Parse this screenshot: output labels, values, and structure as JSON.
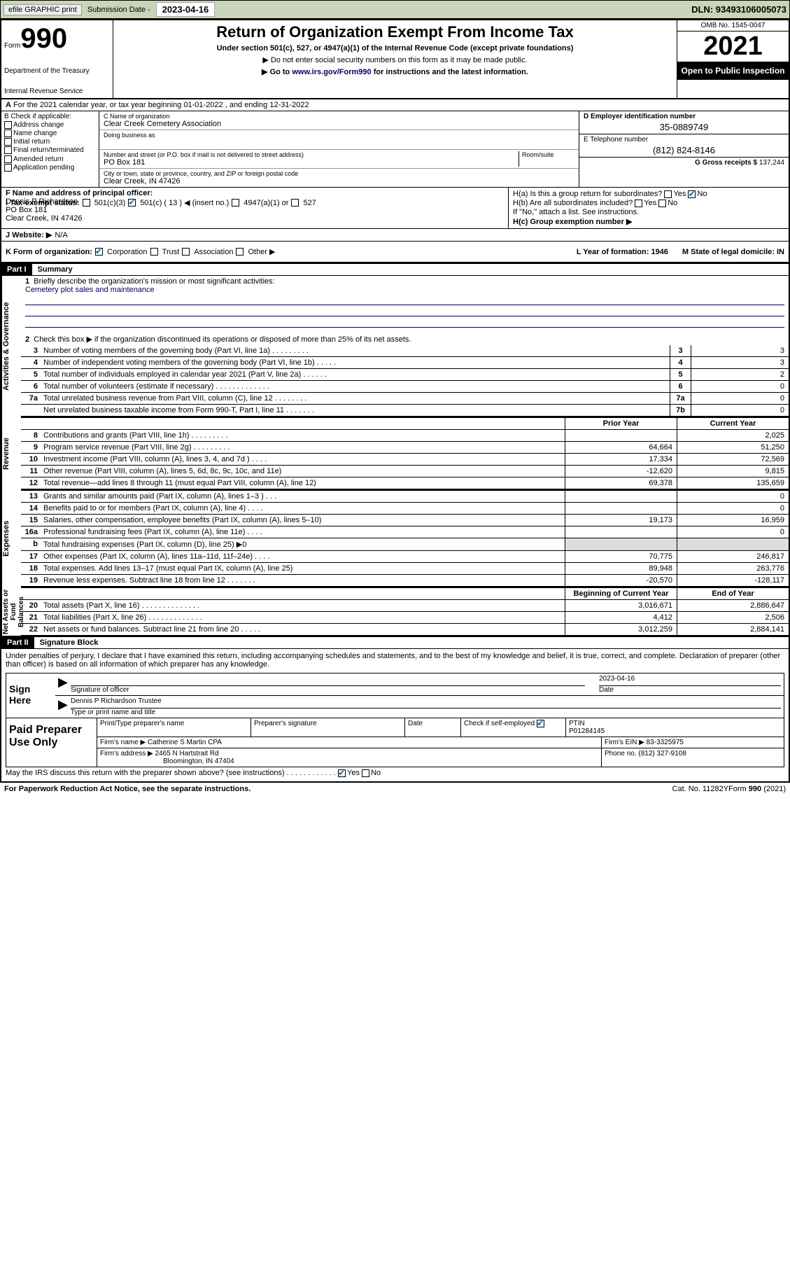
{
  "topbar": {
    "efile": "efile GRAPHIC print",
    "sub_label": "Submission Date - ",
    "sub_date": "2023-04-16",
    "dln": "DLN: 93493106005073"
  },
  "header": {
    "form_word": "Form",
    "form_num": "990",
    "dept": "Department of the Treasury",
    "dept2": "Internal Revenue Service",
    "title": "Return of Organization Exempt From Income Tax",
    "sub1": "Under section 501(c), 527, or 4947(a)(1) of the Internal Revenue Code (except private foundations)",
    "sub2": "▶ Do not enter social security numbers on this form as it may be made public.",
    "sub3_pre": "▶ Go to ",
    "sub3_link": "www.irs.gov/Form990",
    "sub3_post": " for instructions and the latest information.",
    "omb": "OMB No. 1545-0047",
    "year": "2021",
    "open": "Open to Public Inspection"
  },
  "lineA": "For the 2021 calendar year, or tax year beginning 01-01-2022   , and ending 12-31-2022",
  "sectionB": {
    "label": "B Check if applicable:",
    "items": [
      "Address change",
      "Name change",
      "Initial return",
      "Final return/terminated",
      "Amended return",
      "Application pending"
    ]
  },
  "sectionC": {
    "name_label": "C Name of organization",
    "name": "Clear Creek Cemetery Association",
    "dba_label": "Doing business as",
    "addr_label": "Number and street (or P.O. box if mail is not delivered to street address)",
    "room_label": "Room/suite",
    "addr": "PO Box 181",
    "city_label": "City or town, state or province, country, and ZIP or foreign postal code",
    "city": "Clear Creek, IN  47426"
  },
  "sectionD": {
    "label": "D Employer identification number",
    "val": "35-0889749"
  },
  "sectionE": {
    "label": "E Telephone number",
    "val": "(812) 824-8146"
  },
  "sectionG": {
    "label": "G Gross receipts $",
    "val": "137,244"
  },
  "sectionF": {
    "label": "F Name and address of principal officer:",
    "name": "Dennis P Richardson",
    "addr1": "PO Box 181",
    "addr2": "Clear Creek, IN  47426"
  },
  "sectionH": {
    "ha": "H(a)  Is this a group return for subordinates?",
    "hb": "H(b)  Are all subordinates included?",
    "hb_note": "If \"No,\" attach a list. See instructions.",
    "hc": "H(c)  Group exemption number ▶",
    "yes": "Yes",
    "no": "No"
  },
  "sectionI": {
    "label": "I   Tax-exempt status:",
    "c3": "501(c)(3)",
    "c": "501(c) ( 13 ) ◀ (insert no.)",
    "a1": "4947(a)(1) or",
    "s527": "527"
  },
  "sectionJ": {
    "label": "J   Website: ▶",
    "val": "N/A"
  },
  "sectionK": {
    "label": "K Form of organization:",
    "opts": [
      "Corporation",
      "Trust",
      "Association",
      "Other ▶"
    ]
  },
  "sectionL": "L Year of formation: 1946",
  "sectionM": "M State of legal domicile: IN",
  "partI": {
    "hdr": "Part I",
    "title": "Summary",
    "tabs": [
      "Activities & Governance",
      "Revenue",
      "Expenses",
      "Net Assets or Fund Balances"
    ],
    "q1": "Briefly describe the organization's mission or most significant activities:",
    "mission": "Cemetery plot sales and maintenance",
    "q2": "Check this box ▶       if the organization discontinued its operations or disposed of more than 25% of its net assets.",
    "rows_gov": [
      {
        "n": "3",
        "t": "Number of voting members of the governing body (Part VI, line 1a)  .    .    .    .    .    .    .    .    .",
        "box": "3",
        "v": "3"
      },
      {
        "n": "4",
        "t": "Number of independent voting members of the governing body (Part VI, line 1b)  .    .    .    .    .",
        "box": "4",
        "v": "3"
      },
      {
        "n": "5",
        "t": "Total number of individuals employed in calendar year 2021 (Part V, line 2a)  .    .    .    .    .    .",
        "box": "5",
        "v": "2"
      },
      {
        "n": "6",
        "t": "Total number of volunteers (estimate if necessary)  .    .    .    .    .    .    .    .    .    .    .    .    .",
        "box": "6",
        "v": "0"
      },
      {
        "n": "7a",
        "t": "Total unrelated business revenue from Part VIII, column (C), line 12  .    .    .    .    .    .    .    .",
        "box": "7a",
        "v": "0"
      },
      {
        "n": "",
        "t": "Net unrelated business taxable income from Form 990-T, Part I, line 11  .    .    .    .    .    .    .",
        "box": "7b",
        "v": "0"
      }
    ],
    "col_prior": "Prior Year",
    "col_current": "Current Year",
    "rows_rev": [
      {
        "n": "8",
        "t": "Contributions and grants (Part VIII, line 1h)  .    .    .    .    .    .    .    .    .",
        "p": "",
        "c": "2,025"
      },
      {
        "n": "9",
        "t": "Program service revenue (Part VIII, line 2g)  .    .    .    .    .    .    .    .    .",
        "p": "64,664",
        "c": "51,250"
      },
      {
        "n": "10",
        "t": "Investment income (Part VIII, column (A), lines 3, 4, and 7d )  .    .    .    .",
        "p": "17,334",
        "c": "72,569"
      },
      {
        "n": "11",
        "t": "Other revenue (Part VIII, column (A), lines 5, 6d, 8c, 9c, 10c, and 11e)",
        "p": "-12,620",
        "c": "9,815"
      },
      {
        "n": "12",
        "t": "Total revenue—add lines 8 through 11 (must equal Part VIII, column (A), line 12)",
        "p": "69,378",
        "c": "135,659"
      }
    ],
    "rows_exp": [
      {
        "n": "13",
        "t": "Grants and similar amounts paid (Part IX, column (A), lines 1–3 )  .    .    .",
        "p": "",
        "c": "0"
      },
      {
        "n": "14",
        "t": "Benefits paid to or for members (Part IX, column (A), line 4)  .    .    .    .",
        "p": "",
        "c": "0"
      },
      {
        "n": "15",
        "t": "Salaries, other compensation, employee benefits (Part IX, column (A), lines 5–10)",
        "p": "19,173",
        "c": "16,959"
      },
      {
        "n": "16a",
        "t": "Professional fundraising fees (Part IX, column (A), line 11e)  .    .    .    .",
        "p": "",
        "c": "0"
      },
      {
        "n": "b",
        "t": "Total fundraising expenses (Part IX, column (D), line 25) ▶0",
        "p": "shade",
        "c": "shade"
      },
      {
        "n": "17",
        "t": "Other expenses (Part IX, column (A), lines 11a–11d, 11f–24e)  .    .    .    .",
        "p": "70,775",
        "c": "246,817"
      },
      {
        "n": "18",
        "t": "Total expenses. Add lines 13–17 (must equal Part IX, column (A), line 25)",
        "p": "89,948",
        "c": "263,776"
      },
      {
        "n": "19",
        "t": "Revenue less expenses. Subtract line 18 from line 12  .    .    .    .    .    .    .",
        "p": "-20,570",
        "c": "-128,117"
      }
    ],
    "col_begin": "Beginning of Current Year",
    "col_end": "End of Year",
    "rows_net": [
      {
        "n": "20",
        "t": "Total assets (Part X, line 16)  .    .    .    .    .    .    .    .    .    .    .    .    .    .",
        "p": "3,016,671",
        "c": "2,886,647"
      },
      {
        "n": "21",
        "t": "Total liabilities (Part X, line 26)  .    .    .    .    .    .    .    .    .    .    .    .    .",
        "p": "4,412",
        "c": "2,506"
      },
      {
        "n": "22",
        "t": "Net assets or fund balances. Subtract line 21 from line 20  .    .    .    .    .",
        "p": "3,012,259",
        "c": "2,884,141"
      }
    ]
  },
  "partII": {
    "hdr": "Part II",
    "title": "Signature Block",
    "decl": "Under penalties of perjury, I declare that I have examined this return, including accompanying schedules and statements, and to the best of my knowledge and belief, it is true, correct, and complete. Declaration of preparer (other than officer) is based on all information of which preparer has any knowledge.",
    "sign_here": "Sign Here",
    "sig_officer": "Signature of officer",
    "sig_date": "Date",
    "sig_date_val": "2023-04-16",
    "officer_name": "Dennis P Richardson  Trustee",
    "type_name": "Type or print name and title",
    "paid": "Paid Preparer Use Only",
    "pt_name": "Print/Type preparer's name",
    "pp_sig": "Preparer's signature",
    "pp_date": "Date",
    "pp_check": "Check         if self-employed",
    "ptin_label": "PTIN",
    "ptin": "P01284145",
    "firm_name_l": "Firm's name     ▶",
    "firm_name": "Catherine S Martin CPA",
    "firm_ein_l": "Firm's EIN ▶",
    "firm_ein": "83-3325975",
    "firm_addr_l": "Firm's address ▶",
    "firm_addr": "2465 N Hartstrait Rd",
    "firm_city": "Bloomington, IN  47404",
    "phone_l": "Phone no.",
    "phone": "(812) 327-9108",
    "discuss": "May the IRS discuss this return with the preparer shown above? (see instructions)   .    .    .    .    .    .    .    .    .    .    .    .",
    "yes": "Yes",
    "no": "No"
  },
  "footer": {
    "left": "For Paperwork Reduction Act Notice, see the separate instructions.",
    "mid": "Cat. No. 11282Y",
    "right": "Form 990 (2021)"
  }
}
